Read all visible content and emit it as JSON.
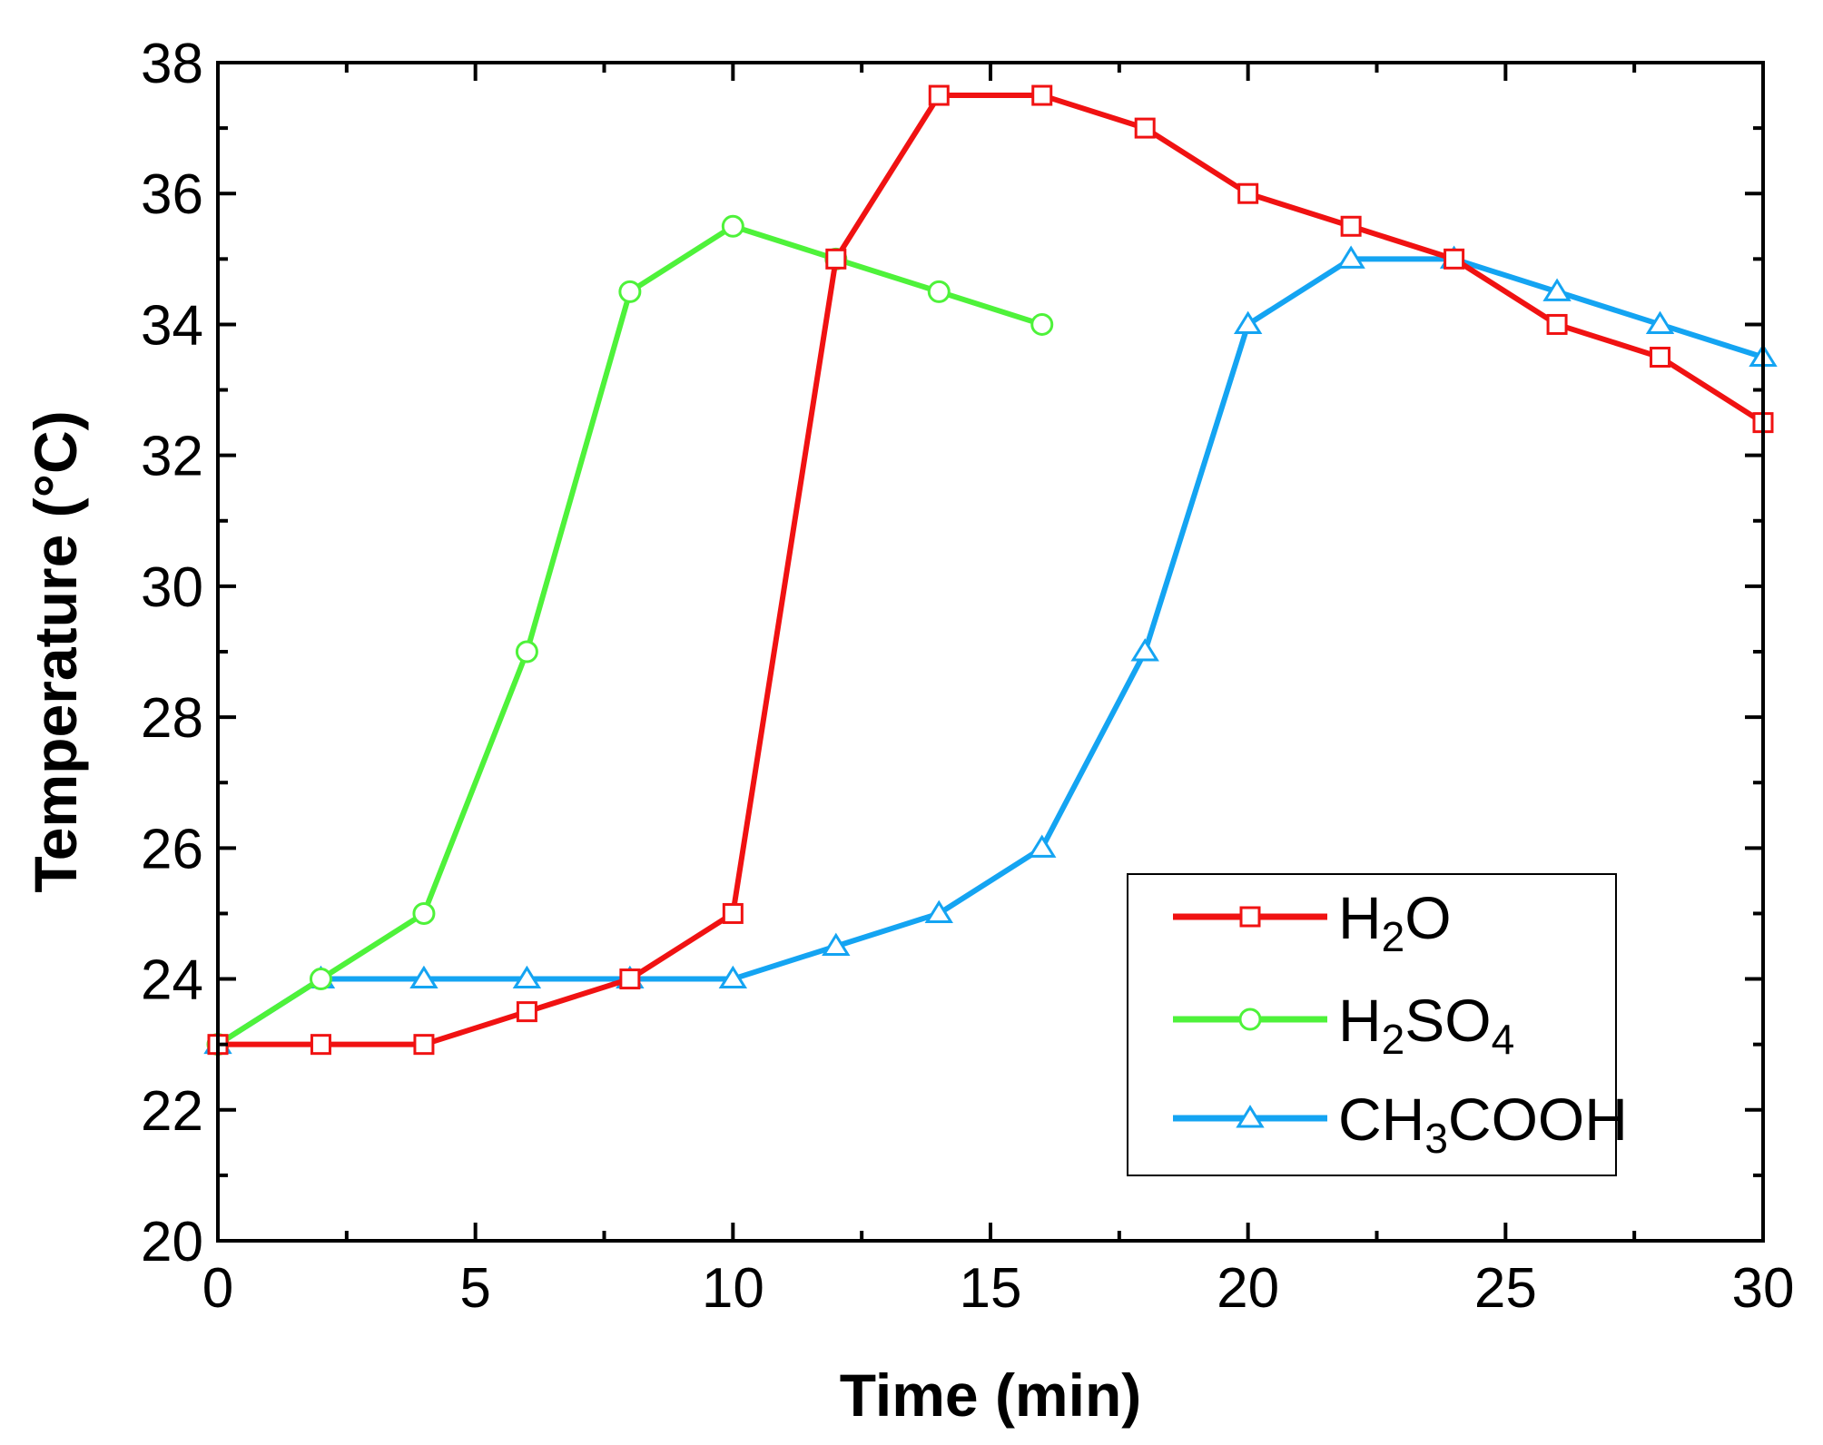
{
  "chart_data": {
    "type": "line",
    "title": "",
    "xlabel": "Time (min)",
    "ylabel": "Temperature (°C)",
    "xlim": [
      0,
      30
    ],
    "ylim": [
      20,
      38
    ],
    "xticks": [
      0,
      5,
      10,
      15,
      20,
      25,
      30
    ],
    "yticks": [
      20,
      22,
      24,
      26,
      28,
      30,
      32,
      34,
      36,
      38
    ],
    "grid": false,
    "legend_position": "lower-right",
    "series": [
      {
        "name": "H2O",
        "label_parts": [
          {
            "text": "H",
            "sub": false
          },
          {
            "text": "2",
            "sub": true
          },
          {
            "text": "O",
            "sub": false
          }
        ],
        "color": "#f01212",
        "marker": "square",
        "x": [
          0,
          2,
          4,
          6,
          8,
          10,
          12,
          14,
          16,
          18,
          20,
          22,
          24,
          26,
          28,
          30
        ],
        "y": [
          23,
          23,
          23,
          23.5,
          24,
          25,
          35,
          37.5,
          37.5,
          37,
          36,
          35.5,
          35,
          34,
          33.5,
          32.5
        ]
      },
      {
        "name": "H2SO4",
        "label_parts": [
          {
            "text": "H",
            "sub": false
          },
          {
            "text": "2",
            "sub": true
          },
          {
            "text": "SO",
            "sub": false
          },
          {
            "text": "4",
            "sub": true
          }
        ],
        "color": "#4ef23a",
        "marker": "circle",
        "x": [
          0,
          2,
          4,
          6,
          8,
          10,
          12,
          14,
          16
        ],
        "y": [
          23,
          24,
          25,
          29,
          34.5,
          35.5,
          35,
          34.5,
          34
        ]
      },
      {
        "name": "CH3COOH",
        "label_parts": [
          {
            "text": "CH",
            "sub": false
          },
          {
            "text": "3",
            "sub": true
          },
          {
            "text": "COOH",
            "sub": false
          }
        ],
        "color": "#14a4f2",
        "marker": "triangle",
        "x": [
          0,
          2,
          4,
          6,
          8,
          10,
          12,
          14,
          16,
          18,
          20,
          22,
          24,
          26,
          28,
          30
        ],
        "y": [
          23,
          24,
          24,
          24,
          24,
          24,
          24.5,
          25,
          26,
          29,
          34,
          35,
          35,
          34.5,
          34,
          33.5
        ]
      }
    ]
  }
}
